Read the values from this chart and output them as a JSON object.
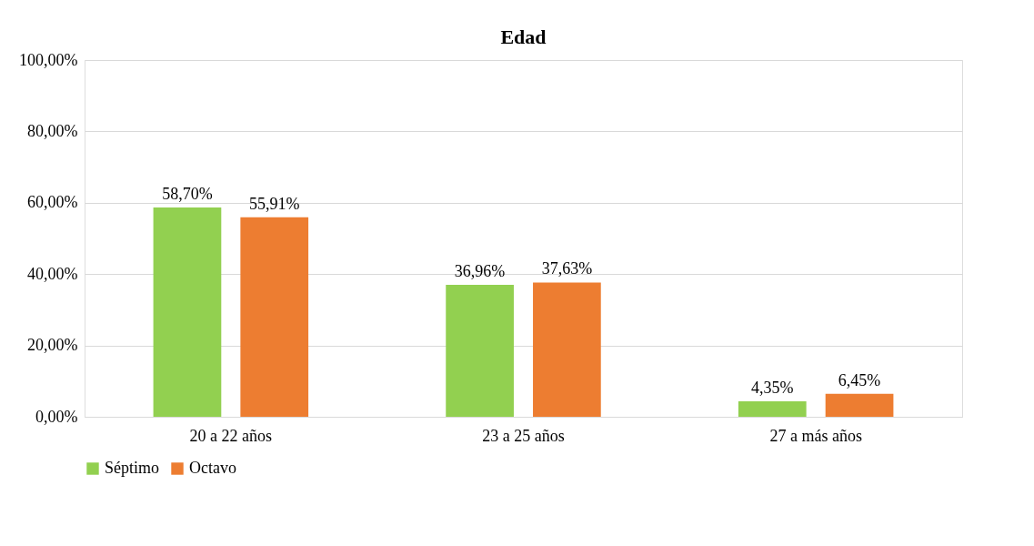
{
  "chart_data": {
    "type": "bar",
    "title": "Edad",
    "categories": [
      "20 a 22 años",
      "23 a 25 años",
      "27 a más años"
    ],
    "series": [
      {
        "name": "Séptimo",
        "color": "#92d050",
        "values": [
          58.7,
          36.96,
          4.35
        ],
        "value_labels": [
          "58,70%",
          "36,96%",
          "4,35%"
        ]
      },
      {
        "name": "Octavo",
        "color": "#ed7d31",
        "values": [
          55.91,
          37.63,
          6.45
        ],
        "value_labels": [
          "55,91%",
          "37,63%",
          "6,45%"
        ]
      }
    ],
    "ylim": [
      0,
      100
    ],
    "yticks": [
      {
        "value": 0,
        "label": "0,00%"
      },
      {
        "value": 20,
        "label": "20,00%"
      },
      {
        "value": 40,
        "label": "40,00%"
      },
      {
        "value": 60,
        "label": "60,00%"
      },
      {
        "value": 80,
        "label": "80,00%"
      },
      {
        "value": 100,
        "label": "100,00%"
      }
    ],
    "grid": "y",
    "legend": "bottom"
  }
}
